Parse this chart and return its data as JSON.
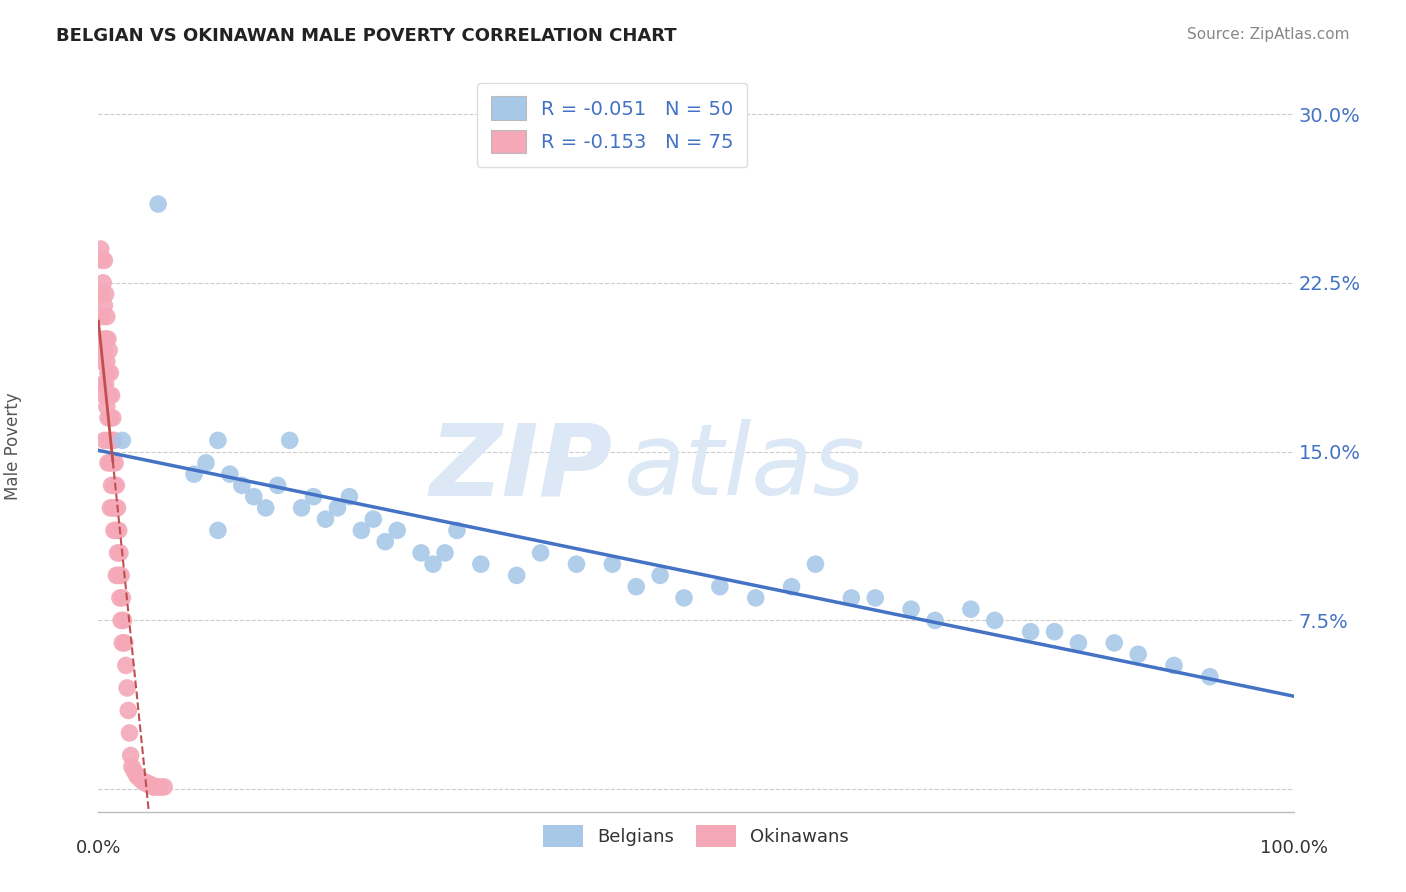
{
  "title": "BELGIAN VS OKINAWAN MALE POVERTY CORRELATION CHART",
  "source": "Source: ZipAtlas.com",
  "ylabel": "Male Poverty",
  "ytick_positions": [
    0.0,
    0.075,
    0.15,
    0.225,
    0.3
  ],
  "ytick_labels": [
    "",
    "7.5%",
    "15.0%",
    "22.5%",
    "30.0%"
  ],
  "xlim": [
    0.0,
    1.0
  ],
  "ylim": [
    -0.01,
    0.315
  ],
  "belgian_R": -0.051,
  "belgian_N": 50,
  "okinawan_R": -0.153,
  "okinawan_N": 75,
  "belgian_color": "#a8c8e8",
  "okinawan_color": "#f4a8b8",
  "belgian_line_color": "#4472c4",
  "okinawan_line_color": "#c0504d",
  "legend_label_color": "#4472c4",
  "watermark_zip": "ZIP",
  "watermark_atlas": "atlas",
  "watermark_color": "#dce8f5",
  "belgian_x": [
    0.02,
    0.05,
    0.08,
    0.09,
    0.1,
    0.1,
    0.11,
    0.12,
    0.13,
    0.14,
    0.15,
    0.16,
    0.17,
    0.18,
    0.19,
    0.2,
    0.21,
    0.22,
    0.23,
    0.24,
    0.25,
    0.27,
    0.28,
    0.29,
    0.3,
    0.32,
    0.35,
    0.37,
    0.4,
    0.43,
    0.45,
    0.47,
    0.49,
    0.52,
    0.55,
    0.58,
    0.6,
    0.63,
    0.65,
    0.68,
    0.7,
    0.73,
    0.75,
    0.78,
    0.8,
    0.82,
    0.85,
    0.87,
    0.9,
    0.93
  ],
  "belgian_y": [
    0.155,
    0.26,
    0.14,
    0.145,
    0.155,
    0.115,
    0.14,
    0.135,
    0.13,
    0.125,
    0.135,
    0.155,
    0.125,
    0.13,
    0.12,
    0.125,
    0.13,
    0.115,
    0.12,
    0.11,
    0.115,
    0.105,
    0.1,
    0.105,
    0.115,
    0.1,
    0.095,
    0.105,
    0.1,
    0.1,
    0.09,
    0.095,
    0.085,
    0.09,
    0.085,
    0.09,
    0.1,
    0.085,
    0.085,
    0.08,
    0.075,
    0.08,
    0.075,
    0.07,
    0.07,
    0.065,
    0.065,
    0.06,
    0.055,
    0.05
  ],
  "okinawan_x": [
    0.002,
    0.002,
    0.003,
    0.003,
    0.003,
    0.004,
    0.004,
    0.004,
    0.005,
    0.005,
    0.005,
    0.005,
    0.005,
    0.006,
    0.006,
    0.006,
    0.007,
    0.007,
    0.007,
    0.008,
    0.008,
    0.008,
    0.008,
    0.009,
    0.009,
    0.009,
    0.01,
    0.01,
    0.01,
    0.01,
    0.011,
    0.011,
    0.011,
    0.012,
    0.012,
    0.012,
    0.013,
    0.013,
    0.013,
    0.014,
    0.014,
    0.015,
    0.015,
    0.015,
    0.016,
    0.016,
    0.017,
    0.017,
    0.018,
    0.018,
    0.019,
    0.019,
    0.02,
    0.02,
    0.021,
    0.022,
    0.023,
    0.024,
    0.025,
    0.026,
    0.027,
    0.028,
    0.03,
    0.032,
    0.034,
    0.036,
    0.038,
    0.04,
    0.042,
    0.044,
    0.046,
    0.048,
    0.05,
    0.052,
    0.055
  ],
  "okinawan_y": [
    0.24,
    0.22,
    0.235,
    0.21,
    0.19,
    0.225,
    0.2,
    0.18,
    0.235,
    0.215,
    0.195,
    0.175,
    0.155,
    0.22,
    0.2,
    0.18,
    0.21,
    0.19,
    0.17,
    0.2,
    0.185,
    0.165,
    0.145,
    0.195,
    0.175,
    0.155,
    0.185,
    0.165,
    0.145,
    0.125,
    0.175,
    0.155,
    0.135,
    0.165,
    0.145,
    0.125,
    0.155,
    0.135,
    0.115,
    0.145,
    0.125,
    0.135,
    0.115,
    0.095,
    0.125,
    0.105,
    0.115,
    0.095,
    0.105,
    0.085,
    0.095,
    0.075,
    0.085,
    0.065,
    0.075,
    0.065,
    0.055,
    0.045,
    0.035,
    0.025,
    0.015,
    0.01,
    0.008,
    0.006,
    0.005,
    0.004,
    0.003,
    0.003,
    0.002,
    0.002,
    0.001,
    0.001,
    0.001,
    0.001,
    0.001
  ]
}
